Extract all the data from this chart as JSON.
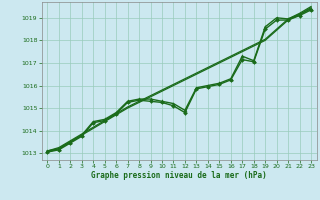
{
  "xlabel": "Graphe pression niveau de la mer (hPa)",
  "bg_color": "#cce8f0",
  "grid_color": "#99ccbb",
  "line_color": "#1a6b1a",
  "axis_color": "#888888",
  "xlim": [
    -0.5,
    23.5
  ],
  "ylim": [
    1012.7,
    1019.7
  ],
  "yticks": [
    1013,
    1014,
    1015,
    1016,
    1017,
    1018,
    1019
  ],
  "xticks": [
    0,
    1,
    2,
    3,
    4,
    5,
    6,
    7,
    8,
    9,
    10,
    11,
    12,
    13,
    14,
    15,
    16,
    17,
    18,
    19,
    20,
    21,
    22,
    23
  ],
  "series": [
    {
      "x": [
        0,
        1,
        2,
        3,
        4,
        5,
        6,
        7,
        8,
        9,
        10,
        11,
        12,
        13,
        14,
        15,
        16,
        17,
        18,
        19,
        20,
        21,
        22,
        23
      ],
      "y": [
        1013.1,
        1013.25,
        1013.55,
        1013.85,
        1014.15,
        1014.45,
        1014.75,
        1015.05,
        1015.3,
        1015.55,
        1015.8,
        1016.05,
        1016.3,
        1016.55,
        1016.8,
        1017.05,
        1017.3,
        1017.55,
        1017.8,
        1018.05,
        1018.5,
        1018.95,
        1019.2,
        1019.5
      ],
      "marker": null,
      "lw": 0.9
    },
    {
      "x": [
        0,
        1,
        2,
        3,
        4,
        5,
        6,
        7,
        8,
        9,
        10,
        11,
        12,
        13,
        14,
        15,
        16,
        17,
        18,
        19,
        20,
        21,
        22,
        23
      ],
      "y": [
        1013.1,
        1013.2,
        1013.5,
        1013.8,
        1014.4,
        1014.5,
        1014.8,
        1015.3,
        1015.4,
        1015.4,
        1015.3,
        1015.2,
        1014.9,
        1015.9,
        1016.0,
        1016.1,
        1016.3,
        1017.3,
        1017.1,
        1018.6,
        1019.0,
        1018.95,
        1019.15,
        1019.4
      ],
      "marker": "^",
      "ms": 2.5,
      "lw": 1.0
    },
    {
      "x": [
        0,
        1,
        2,
        3,
        4,
        5,
        6,
        7,
        8,
        9,
        10,
        11,
        12,
        13,
        14,
        15,
        16,
        17,
        18,
        19,
        20,
        21,
        22,
        23
      ],
      "y": [
        1013.05,
        1013.15,
        1013.45,
        1013.75,
        1014.35,
        1014.45,
        1014.75,
        1015.25,
        1015.35,
        1015.3,
        1015.25,
        1015.1,
        1014.8,
        1015.85,
        1015.95,
        1016.05,
        1016.25,
        1017.15,
        1017.05,
        1018.5,
        1018.9,
        1018.9,
        1019.1,
        1019.35
      ],
      "marker": "D",
      "ms": 2.0,
      "lw": 1.0
    },
    {
      "x": [
        0,
        1,
        2,
        3,
        4,
        5,
        6,
        7,
        8,
        9,
        10,
        11,
        12,
        13,
        14,
        15,
        16,
        17,
        18,
        19,
        20,
        21,
        22,
        23
      ],
      "y": [
        1013.05,
        1013.2,
        1013.5,
        1013.8,
        1014.1,
        1014.4,
        1014.7,
        1015.0,
        1015.25,
        1015.5,
        1015.75,
        1016.0,
        1016.25,
        1016.5,
        1016.75,
        1017.0,
        1017.25,
        1017.5,
        1017.75,
        1018.0,
        1018.45,
        1018.9,
        1019.15,
        1019.45
      ],
      "marker": null,
      "lw": 0.9
    }
  ]
}
